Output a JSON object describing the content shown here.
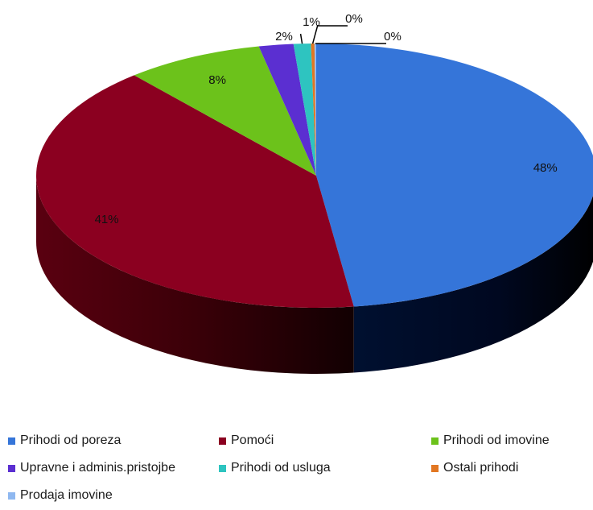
{
  "chart_data": {
    "type": "pie",
    "title": "",
    "slices": [
      {
        "label": "Prihodi od poreza",
        "value": 48,
        "display": "48%",
        "color": "#3575D9"
      },
      {
        "label": "Pomoći",
        "value": 41,
        "display": "41%",
        "color": "#8B0020"
      },
      {
        "label": "Prihodi od imovine",
        "value": 8,
        "display": "8%",
        "color": "#6CC21B"
      },
      {
        "label": "Upravne i adminis.pristojbe",
        "value": 2,
        "display": "2%",
        "color": "#5B2FD1"
      },
      {
        "label": "Prihodi od usluga",
        "value": 1,
        "display": "1%",
        "color": "#2EC4C0"
      },
      {
        "label": "Ostali prihodi",
        "value": 0.2,
        "display": "0%",
        "color": "#E27722"
      },
      {
        "label": "Prodaja imovine",
        "value": 0.1,
        "display": "0%",
        "color": "#8FB8F0"
      }
    ],
    "legend": {
      "position": "bottom"
    }
  }
}
